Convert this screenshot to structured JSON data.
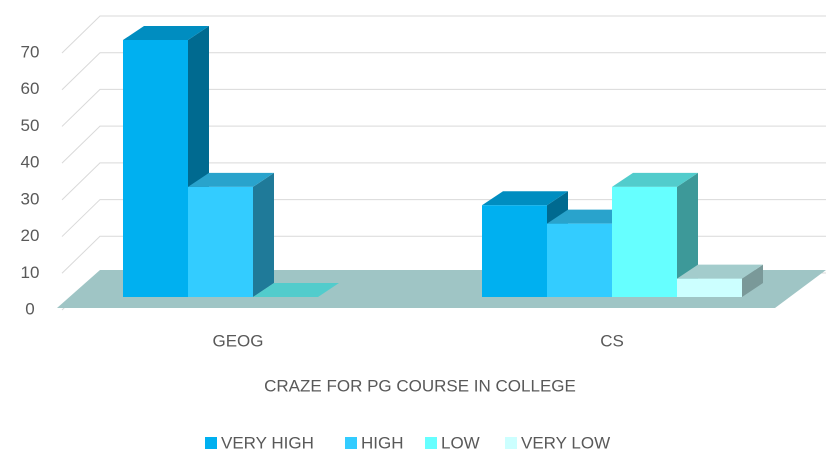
{
  "chart_data": {
    "type": "bar3d",
    "x_label": "CRAZE FOR PG COURSE IN COLLEGE",
    "categories": [
      "GEOG",
      "CS"
    ],
    "series": [
      {
        "name": "VERY HIGH",
        "color": "#00b0f0",
        "values": [
          70,
          25
        ]
      },
      {
        "name": "HIGH",
        "color": "#33ccff",
        "values": [
          30,
          20
        ]
      },
      {
        "name": "LOW",
        "color": "#66ffff",
        "values": [
          0,
          30
        ]
      },
      {
        "name": "VERY LOW",
        "color": "#ccffff",
        "values": [
          null,
          5
        ]
      }
    ],
    "ylim": [
      0,
      70
    ],
    "yticks": [
      0,
      10,
      20,
      30,
      40,
      50,
      60,
      70
    ],
    "grid": true,
    "legend": "bottom"
  }
}
